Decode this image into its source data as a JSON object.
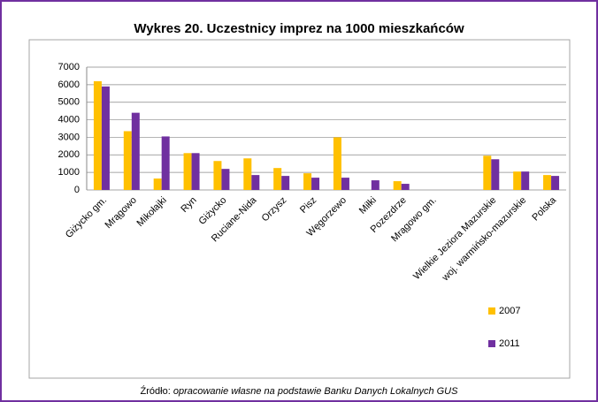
{
  "chart_data": {
    "type": "bar",
    "title": "Wykres 20. Uczestnicy imprez na 1000 mieszkańców",
    "categories": [
      "Giżycko gm.",
      "Mrągowo",
      "Mikołajki",
      "Ryn",
      "Giżycko",
      "Ruciane-Nida",
      "Orzysz",
      "Pisz",
      "Węgorzewo",
      "Miłki",
      "Pozezdrze",
      "Mrągowo gm.",
      null,
      "Wielkie Jeziora Mazurskie",
      "woj. warmińsko-mazurskie",
      "Polska"
    ],
    "series": [
      {
        "name": "2007",
        "color": "#ffc000",
        "values": [
          6200,
          3350,
          650,
          2100,
          1650,
          1800,
          1250,
          950,
          3000,
          null,
          500,
          null,
          null,
          1950,
          1050,
          850
        ]
      },
      {
        "name": "2011",
        "color": "#7030a0",
        "values": [
          5900,
          4400,
          3050,
          2100,
          1200,
          850,
          800,
          700,
          700,
          550,
          350,
          null,
          null,
          1750,
          1050,
          800
        ]
      }
    ],
    "ylim": [
      0,
      7000
    ],
    "yticks": [
      0,
      1000,
      2000,
      3000,
      4000,
      5000,
      6000,
      7000
    ],
    "grid": true,
    "legend": "right",
    "source_label": "Źródło:",
    "source_text": "opracowanie własne na podstawie Banku Danych Lokalnych GUS"
  }
}
